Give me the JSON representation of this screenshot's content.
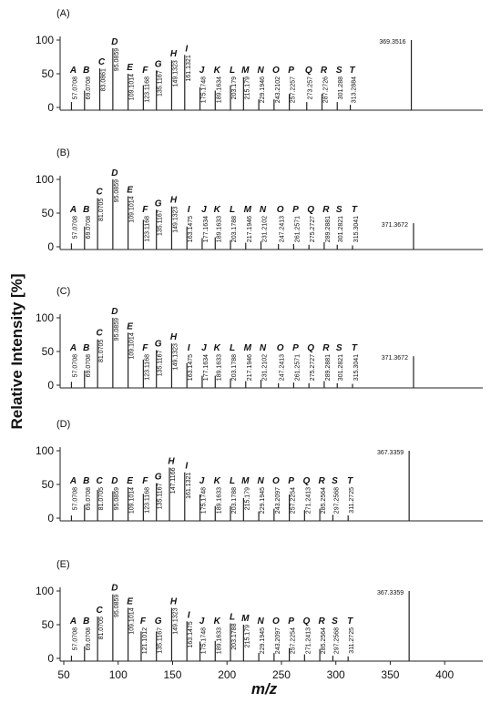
{
  "chart_data": [
    {
      "type": "stem",
      "panel_label": "(A)",
      "xlim": [
        50,
        435
      ],
      "ylim": [
        0,
        100
      ],
      "yticks": [
        0,
        50,
        100
      ],
      "x": [
        57.0708,
        69.0708,
        83.0861,
        95.0859,
        109.1014,
        123.1168,
        135.1167,
        149.1323,
        161.1321,
        175.1748,
        189.1634,
        203.179,
        215.179,
        229.1946,
        243.2102,
        257.2257,
        273.257,
        287.2726,
        301.288,
        313.2884,
        369.3516
      ],
      "values": [
        8,
        25,
        58,
        88,
        50,
        33,
        55,
        70,
        78,
        30,
        25,
        33,
        45,
        12,
        12,
        20,
        8,
        20,
        8,
        4,
        100
      ],
      "letters": [
        "A",
        "B",
        "C",
        "D",
        "E",
        "F",
        "G",
        "H",
        "I",
        "J",
        "K",
        "L",
        "M",
        "N",
        "O",
        "P",
        "Q",
        "R",
        "S",
        "T",
        null
      ]
    },
    {
      "type": "stem",
      "panel_label": "(B)",
      "xlim": [
        50,
        435
      ],
      "ylim": [
        0,
        100
      ],
      "yticks": [
        0,
        50,
        100
      ],
      "x": [
        57.0708,
        69.0708,
        81.0705,
        95.0859,
        109.1014,
        123.1168,
        135.1167,
        149.1323,
        163.1475,
        177.1634,
        189.1633,
        203.1788,
        217.1946,
        231.2102,
        247.2413,
        261.2571,
        275.2727,
        289.2881,
        301.2821,
        315.3041,
        371.3672
      ],
      "values": [
        5,
        30,
        72,
        100,
        75,
        40,
        55,
        60,
        30,
        13,
        14,
        10,
        6,
        8,
        4,
        4,
        3,
        7,
        3,
        2,
        35
      ],
      "letters": [
        "A",
        "B",
        "C",
        "D",
        "E",
        "F",
        "G",
        "H",
        "I",
        "J",
        "K",
        "L",
        "M",
        "N",
        "O",
        "P",
        "Q",
        "R",
        "S",
        "T",
        null
      ]
    },
    {
      "type": "stem",
      "panel_label": "(C)",
      "xlim": [
        50,
        435
      ],
      "ylim": [
        0,
        100
      ],
      "yticks": [
        0,
        50,
        100
      ],
      "ylabel": "Relative Intensity [%]",
      "x": [
        57.0708,
        69.0708,
        81.0705,
        95.0859,
        109.1014,
        123.1168,
        135.1167,
        149.1323,
        163.1475,
        177.1634,
        189.1633,
        203.1788,
        217.1946,
        231.2102,
        247.2413,
        261.2571,
        275.2727,
        289.2881,
        301.2821,
        315.3041,
        371.3672
      ],
      "values": [
        5,
        22,
        68,
        100,
        78,
        38,
        52,
        62,
        33,
        14,
        14,
        10,
        6,
        8,
        3,
        4,
        3,
        6,
        3,
        2,
        43
      ],
      "letters": [
        "A",
        "B",
        "C",
        "D",
        "E",
        "F",
        "G",
        "H",
        "I",
        "J",
        "K",
        "L",
        "M",
        "N",
        "O",
        "P",
        "Q",
        "R",
        "S",
        "T",
        null
      ]
    },
    {
      "type": "stem",
      "panel_label": "(D)",
      "xlim": [
        50,
        435
      ],
      "ylim": [
        0,
        100
      ],
      "yticks": [
        0,
        50,
        100
      ],
      "x": [
        57.0708,
        69.0708,
        81.0705,
        95.0859,
        109.1014,
        123.1168,
        135.1167,
        147.1166,
        161.1321,
        175.1748,
        189.1633,
        203.1788,
        215.179,
        229.1945,
        243.2097,
        257.2254,
        271.2413,
        285.2564,
        297.2568,
        311.2725,
        367.3359
      ],
      "values": [
        4,
        20,
        42,
        40,
        46,
        36,
        52,
        75,
        68,
        35,
        18,
        18,
        30,
        10,
        14,
        35,
        12,
        14,
        5,
        4,
        100
      ],
      "letters": [
        "A",
        "B",
        "C",
        "D",
        "E",
        "F",
        "G",
        "H",
        "I",
        "J",
        "K",
        "L",
        "M",
        "N",
        "O",
        "P",
        "Q",
        "R",
        "S",
        "T",
        null
      ]
    },
    {
      "type": "stem",
      "panel_label": "(E)",
      "xlim": [
        50,
        435
      ],
      "ylim": [
        0,
        100
      ],
      "yticks": [
        0,
        50,
        100
      ],
      "xticks": [
        50,
        100,
        150,
        200,
        250,
        300,
        350,
        400
      ],
      "xlabel": "m/z",
      "x": [
        57.0708,
        69.0708,
        81.0705,
        95.0859,
        109.1014,
        121.1012,
        135.1167,
        149.1323,
        163.1475,
        175.1748,
        189.1633,
        203.1788,
        215.179,
        229.1945,
        243.2097,
        257.2254,
        271.2413,
        285.2564,
        297.2568,
        311.2725,
        367.3359
      ],
      "values": [
        4,
        18,
        62,
        95,
        75,
        40,
        40,
        75,
        55,
        25,
        26,
        52,
        50,
        8,
        8,
        15,
        6,
        14,
        4,
        3,
        100
      ],
      "letters": [
        "A",
        "B",
        "C",
        "D",
        "E",
        "F",
        "G",
        "H",
        "I",
        "J",
        "K",
        "L",
        "M",
        "N",
        "O",
        "P",
        "Q",
        "R",
        "S",
        "T",
        null
      ]
    }
  ]
}
